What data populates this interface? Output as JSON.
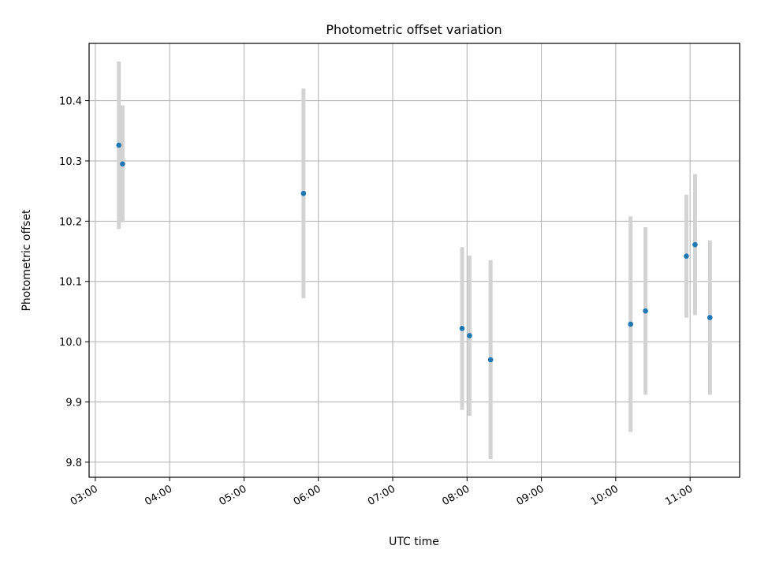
{
  "chart_data": {
    "type": "scatter",
    "title": "Photometric offset variation",
    "xlabel": "UTC time",
    "ylabel": "Photometric offset",
    "grid": true,
    "x_format": "HH:MM",
    "xlim": [
      "02:55",
      "11:40"
    ],
    "ylim": [
      9.775,
      10.495
    ],
    "x_ticks": [
      "03:00",
      "04:00",
      "05:00",
      "06:00",
      "07:00",
      "08:00",
      "09:00",
      "10:00",
      "11:00"
    ],
    "y_ticks": [
      "9.8",
      "9.9",
      "10.0",
      "10.1",
      "10.2",
      "10.3",
      "10.4"
    ],
    "marker_color": "#1f77b4",
    "errorbar_color": "#d3d3d3",
    "series": [
      {
        "points": [
          {
            "x": "03:19",
            "y": 10.326,
            "err": 0.139
          },
          {
            "x": "03:22",
            "y": 10.295,
            "err": 0.097
          },
          {
            "x": "05:48",
            "y": 10.246,
            "err": 0.174
          },
          {
            "x": "07:56",
            "y": 10.022,
            "err": 0.135
          },
          {
            "x": "08:02",
            "y": 10.01,
            "err": 0.133
          },
          {
            "x": "08:19",
            "y": 9.97,
            "err": 0.165
          },
          {
            "x": "10:12",
            "y": 10.029,
            "err": 0.179
          },
          {
            "x": "10:24",
            "y": 10.051,
            "err": 0.139
          },
          {
            "x": "10:57",
            "y": 10.142,
            "err": 0.102
          },
          {
            "x": "11:04",
            "y": 10.161,
            "err": 0.117
          },
          {
            "x": "11:16",
            "y": 10.04,
            "err": 0.128
          }
        ]
      }
    ]
  }
}
